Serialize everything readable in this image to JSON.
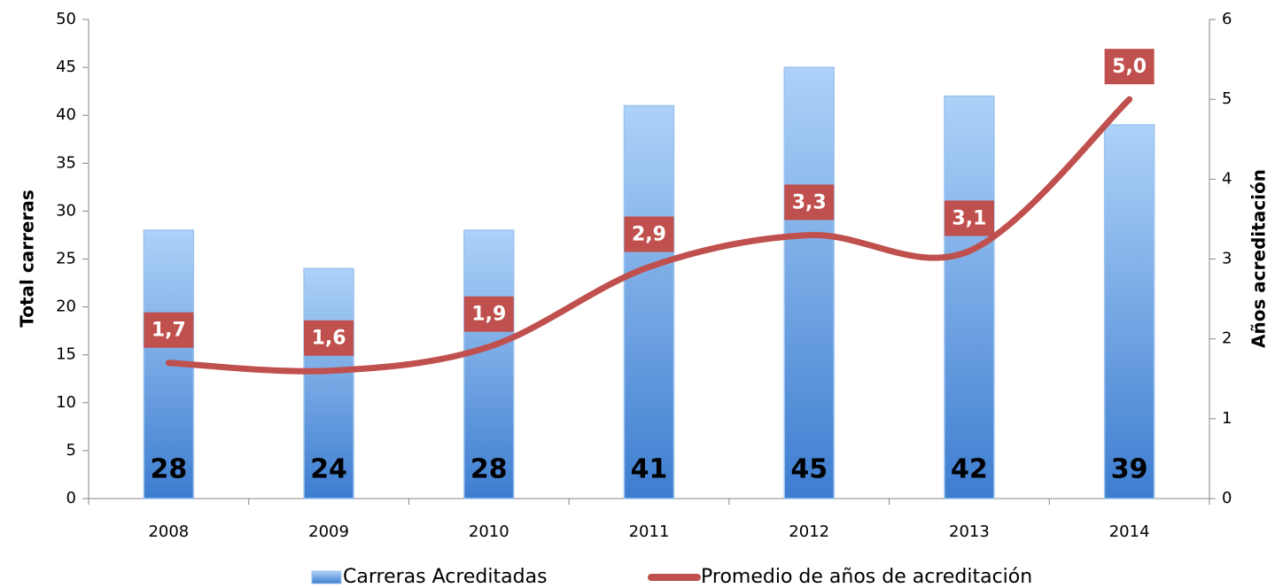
{
  "chart_data": {
    "type": "bar",
    "categories": [
      "2008",
      "2009",
      "2010",
      "2011",
      "2012",
      "2013",
      "2014"
    ],
    "y_label": "Total carreras",
    "y2_label": "Años acreditación",
    "ylim": [
      0,
      50
    ],
    "yticks": [
      0,
      5,
      10,
      15,
      20,
      25,
      30,
      35,
      40,
      45,
      50
    ],
    "y2lim": [
      0,
      6
    ],
    "y2ticks": [
      0,
      1,
      2,
      3,
      4,
      5,
      6
    ],
    "legend": "bottom",
    "series": [
      {
        "name": "Carreras Acreditadas",
        "type": "bar",
        "color": "#4f8fdc",
        "values": [
          28,
          24,
          28,
          41,
          45,
          42,
          39
        ]
      },
      {
        "name": "Promedio de años de acreditación",
        "type": "line",
        "axis": "y2",
        "color": "#c0504d",
        "values": [
          1.7,
          1.6,
          1.9,
          2.9,
          3.3,
          3.1,
          5.0
        ],
        "value_labels": [
          "1,7",
          "1,6",
          "1,9",
          "2,9",
          "3,3",
          "3,1",
          "5,0"
        ]
      }
    ]
  }
}
